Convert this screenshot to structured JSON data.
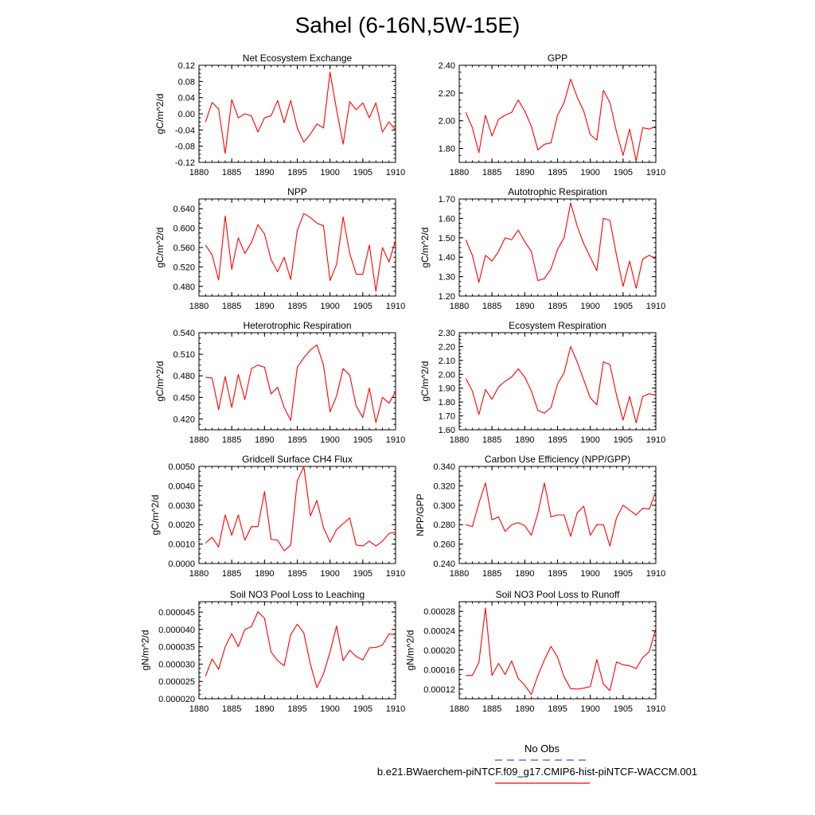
{
  "title": "Sahel (6-16N,5W-15E)",
  "colors": {
    "model": "#ff0000",
    "obs": "#4b4bd9"
  },
  "legend": {
    "entries": [
      {
        "label": "No Obs",
        "style": "dashed",
        "color": "#4b4bd9"
      },
      {
        "label": "b.e21.BWaerchem-piNTCF.f09_g17.CMIP6-hist-piNTCF-WACCM.001",
        "style": "solid",
        "color": "#ff0000"
      }
    ]
  },
  "chart_data": [
    {
      "type": "line",
      "title": "Net Ecosystem Exchange",
      "ylabel": "gC/m^2/d",
      "xlim": [
        1880,
        1910
      ],
      "xticks": [
        1880,
        1885,
        1890,
        1895,
        1900,
        1905,
        1910
      ],
      "ylim": [
        -0.12,
        0.12
      ],
      "yticks": [
        -0.12,
        -0.08,
        -0.04,
        0.0,
        0.04,
        0.08,
        0.12
      ],
      "yfmt": 2,
      "x": [
        1881,
        1882,
        1883,
        1884,
        1885,
        1886,
        1887,
        1888,
        1889,
        1890,
        1891,
        1892,
        1893,
        1894,
        1895,
        1896,
        1897,
        1898,
        1899,
        1900,
        1901,
        1902,
        1903,
        1904,
        1905,
        1906,
        1907,
        1908,
        1909,
        1910
      ],
      "series": [
        {
          "values": [
            -0.02,
            0.028,
            0.012,
            -0.098,
            0.035,
            -0.01,
            0.0,
            -0.005,
            -0.045,
            -0.01,
            -0.005,
            0.033,
            -0.022,
            0.033,
            -0.035,
            -0.07,
            -0.05,
            -0.025,
            -0.035,
            0.103,
            0.01,
            -0.075,
            0.03,
            0.01,
            0.027,
            -0.01,
            0.027,
            -0.045,
            -0.02,
            -0.04
          ]
        }
      ]
    },
    {
      "type": "line",
      "title": "GPP",
      "ylabel": "",
      "xlim": [
        1880,
        1910
      ],
      "xticks": [
        1880,
        1885,
        1890,
        1895,
        1900,
        1905,
        1910
      ],
      "ylim": [
        1.7,
        2.4
      ],
      "yticks": [
        1.8,
        2.0,
        2.2,
        2.4
      ],
      "yfmt": 2,
      "x": [
        1881,
        1882,
        1883,
        1884,
        1885,
        1886,
        1887,
        1888,
        1889,
        1890,
        1891,
        1892,
        1893,
        1894,
        1895,
        1896,
        1897,
        1898,
        1899,
        1900,
        1901,
        1902,
        1903,
        1904,
        1905,
        1906,
        1907,
        1908,
        1909,
        1910
      ],
      "series": [
        {
          "values": [
            2.06,
            1.95,
            1.77,
            2.04,
            1.89,
            2.01,
            2.04,
            2.06,
            2.15,
            2.07,
            1.96,
            1.79,
            1.83,
            1.84,
            2.04,
            2.13,
            2.3,
            2.17,
            2.07,
            1.9,
            1.86,
            2.22,
            2.13,
            1.92,
            1.75,
            1.94,
            1.71,
            1.95,
            1.94,
            1.96
          ]
        }
      ]
    },
    {
      "type": "line",
      "title": "NPP",
      "ylabel": "gC/m^2/d",
      "xlim": [
        1880,
        1910
      ],
      "xticks": [
        1880,
        1885,
        1890,
        1895,
        1900,
        1905,
        1910
      ],
      "ylim": [
        0.46,
        0.66
      ],
      "yticks": [
        0.48,
        0.52,
        0.56,
        0.6,
        0.64
      ],
      "yfmt": 3,
      "x": [
        1881,
        1882,
        1883,
        1884,
        1885,
        1886,
        1887,
        1888,
        1889,
        1890,
        1891,
        1892,
        1893,
        1894,
        1895,
        1896,
        1897,
        1898,
        1899,
        1900,
        1901,
        1902,
        1903,
        1904,
        1905,
        1906,
        1907,
        1908,
        1909,
        1910
      ],
      "series": [
        {
          "values": [
            0.565,
            0.545,
            0.493,
            0.625,
            0.515,
            0.58,
            0.548,
            0.57,
            0.607,
            0.588,
            0.535,
            0.51,
            0.54,
            0.494,
            0.595,
            0.63,
            0.622,
            0.61,
            0.605,
            0.492,
            0.525,
            0.623,
            0.548,
            0.505,
            0.505,
            0.565,
            0.47,
            0.56,
            0.53,
            0.575
          ]
        }
      ]
    },
    {
      "type": "line",
      "title": "Autotrophic Respiration",
      "ylabel": "gC/m^2/d",
      "xlim": [
        1880,
        1910
      ],
      "xticks": [
        1880,
        1885,
        1890,
        1895,
        1900,
        1905,
        1910
      ],
      "ylim": [
        1.2,
        1.7
      ],
      "yticks": [
        1.2,
        1.3,
        1.4,
        1.5,
        1.6,
        1.7
      ],
      "yfmt": 2,
      "x": [
        1881,
        1882,
        1883,
        1884,
        1885,
        1886,
        1887,
        1888,
        1889,
        1890,
        1891,
        1892,
        1893,
        1894,
        1895,
        1896,
        1897,
        1898,
        1899,
        1900,
        1901,
        1902,
        1903,
        1904,
        1905,
        1906,
        1907,
        1908,
        1909,
        1910
      ],
      "series": [
        {
          "values": [
            1.49,
            1.41,
            1.27,
            1.41,
            1.38,
            1.43,
            1.5,
            1.49,
            1.54,
            1.48,
            1.43,
            1.28,
            1.29,
            1.34,
            1.44,
            1.5,
            1.68,
            1.56,
            1.47,
            1.4,
            1.33,
            1.6,
            1.59,
            1.41,
            1.25,
            1.38,
            1.24,
            1.39,
            1.41,
            1.39
          ]
        }
      ]
    },
    {
      "type": "line",
      "title": "Heterotrophic Respiration",
      "ylabel": "gC/m^2/d",
      "xlim": [
        1880,
        1910
      ],
      "xticks": [
        1880,
        1885,
        1890,
        1895,
        1900,
        1905,
        1910
      ],
      "ylim": [
        0.405,
        0.54
      ],
      "yticks": [
        0.42,
        0.45,
        0.48,
        0.51,
        0.54
      ],
      "yfmt": 3,
      "x": [
        1881,
        1882,
        1883,
        1884,
        1885,
        1886,
        1887,
        1888,
        1889,
        1890,
        1891,
        1892,
        1893,
        1894,
        1895,
        1896,
        1897,
        1898,
        1899,
        1900,
        1901,
        1902,
        1903,
        1904,
        1905,
        1906,
        1907,
        1908,
        1909,
        1910
      ],
      "series": [
        {
          "values": [
            0.478,
            0.477,
            0.433,
            0.479,
            0.436,
            0.482,
            0.447,
            0.49,
            0.495,
            0.492,
            0.455,
            0.464,
            0.436,
            0.418,
            0.492,
            0.505,
            0.516,
            0.523,
            0.495,
            0.43,
            0.452,
            0.49,
            0.481,
            0.438,
            0.422,
            0.463,
            0.415,
            0.45,
            0.442,
            0.458
          ]
        }
      ]
    },
    {
      "type": "line",
      "title": "Ecosystem Respiration",
      "ylabel": "gC/m^2/d",
      "xlim": [
        1880,
        1910
      ],
      "xticks": [
        1880,
        1885,
        1890,
        1895,
        1900,
        1905,
        1910
      ],
      "ylim": [
        1.6,
        2.3
      ],
      "yticks": [
        1.6,
        1.7,
        1.8,
        1.9,
        2.0,
        2.1,
        2.2,
        2.3
      ],
      "yfmt": 2,
      "x": [
        1881,
        1882,
        1883,
        1884,
        1885,
        1886,
        1887,
        1888,
        1889,
        1890,
        1891,
        1892,
        1893,
        1894,
        1895,
        1896,
        1897,
        1898,
        1899,
        1900,
        1901,
        1902,
        1903,
        1904,
        1905,
        1906,
        1907,
        1908,
        1909,
        1910
      ],
      "series": [
        {
          "values": [
            1.97,
            1.88,
            1.71,
            1.89,
            1.82,
            1.91,
            1.95,
            1.98,
            2.04,
            1.98,
            1.88,
            1.74,
            1.72,
            1.76,
            1.93,
            2.01,
            2.2,
            2.09,
            1.96,
            1.83,
            1.78,
            2.09,
            2.07,
            1.85,
            1.67,
            1.84,
            1.65,
            1.84,
            1.86,
            1.85
          ]
        }
      ]
    },
    {
      "type": "line",
      "title": "Gridcell Surface CH4 Flux",
      "ylabel": "gC/m^2/d",
      "xlim": [
        1880,
        1910
      ],
      "xticks": [
        1880,
        1885,
        1890,
        1895,
        1900,
        1905,
        1910
      ],
      "ylim": [
        0.0,
        0.005
      ],
      "yticks": [
        0.0,
        0.001,
        0.002,
        0.003,
        0.004,
        0.005
      ],
      "yfmt": 4,
      "x": [
        1881,
        1882,
        1883,
        1884,
        1885,
        1886,
        1887,
        1888,
        1889,
        1890,
        1891,
        1892,
        1893,
        1894,
        1895,
        1896,
        1897,
        1898,
        1899,
        1900,
        1901,
        1902,
        1903,
        1904,
        1905,
        1906,
        1907,
        1908,
        1909,
        1910
      ],
      "series": [
        {
          "values": [
            0.00105,
            0.00135,
            0.00085,
            0.0025,
            0.00145,
            0.0025,
            0.0012,
            0.0019,
            0.0019,
            0.0037,
            0.00125,
            0.0012,
            0.00065,
            0.00095,
            0.00425,
            0.005,
            0.00245,
            0.00325,
            0.00185,
            0.0011,
            0.00175,
            0.00205,
            0.00235,
            0.00095,
            0.0009,
            0.00115,
            0.0009,
            0.00115,
            0.00155,
            0.0016
          ]
        }
      ]
    },
    {
      "type": "line",
      "title": "Carbon Use Efficiency (NPP/GPP)",
      "ylabel": "NPP/GPP",
      "xlim": [
        1880,
        1910
      ],
      "xticks": [
        1880,
        1885,
        1890,
        1895,
        1900,
        1905,
        1910
      ],
      "ylim": [
        0.24,
        0.34
      ],
      "yticks": [
        0.24,
        0.26,
        0.28,
        0.3,
        0.32,
        0.34
      ],
      "yfmt": 3,
      "x": [
        1881,
        1882,
        1883,
        1884,
        1885,
        1886,
        1887,
        1888,
        1889,
        1890,
        1891,
        1892,
        1893,
        1894,
        1895,
        1896,
        1897,
        1898,
        1899,
        1900,
        1901,
        1902,
        1903,
        1904,
        1905,
        1906,
        1907,
        1908,
        1909,
        1910
      ],
      "series": [
        {
          "values": [
            0.28,
            0.278,
            0.302,
            0.323,
            0.285,
            0.288,
            0.273,
            0.28,
            0.282,
            0.279,
            0.269,
            0.292,
            0.323,
            0.288,
            0.29,
            0.29,
            0.268,
            0.292,
            0.299,
            0.269,
            0.28,
            0.28,
            0.258,
            0.287,
            0.3,
            0.295,
            0.29,
            0.297,
            0.296,
            0.314
          ]
        }
      ]
    },
    {
      "type": "line",
      "title": "Soil NO3 Pool Loss to Leaching",
      "ylabel": "gN/m^2/d",
      "xlim": [
        1880,
        1910
      ],
      "xticks": [
        1880,
        1885,
        1890,
        1895,
        1900,
        1905,
        1910
      ],
      "ylim": [
        2e-05,
        4.8e-05
      ],
      "yticks": [
        2e-05,
        2.5e-05,
        3e-05,
        3.5e-05,
        4e-05,
        4.5e-05
      ],
      "yfmt": 6,
      "x": [
        1881,
        1882,
        1883,
        1884,
        1885,
        1886,
        1887,
        1888,
        1889,
        1890,
        1891,
        1892,
        1893,
        1894,
        1895,
        1896,
        1897,
        1898,
        1899,
        1900,
        1901,
        1902,
        1903,
        1904,
        1905,
        1906,
        1907,
        1908,
        1909,
        1910
      ],
      "series": [
        {
          "values": [
            2.65e-05,
            3.15e-05,
            2.85e-05,
            3.5e-05,
            3.88e-05,
            3.5e-05,
            4e-05,
            4.08e-05,
            4.51e-05,
            4.32e-05,
            3.35e-05,
            3.1e-05,
            2.95e-05,
            3.85e-05,
            4.15e-05,
            3.9e-05,
            3e-05,
            2.32e-05,
            2.72e-05,
            3.35e-05,
            4.1e-05,
            3.1e-05,
            3.4e-05,
            3.22e-05,
            3.12e-05,
            3.47e-05,
            3.48e-05,
            3.55e-05,
            3.87e-05,
            3.85e-05
          ]
        }
      ]
    },
    {
      "type": "line",
      "title": "Soil NO3 Pool Loss to Runoff",
      "ylabel": "gN/m^2/d",
      "xlim": [
        1880,
        1910
      ],
      "xticks": [
        1880,
        1885,
        1890,
        1895,
        1900,
        1905,
        1910
      ],
      "ylim": [
        0.0001,
        0.0003
      ],
      "yticks": [
        0.00012,
        0.00016,
        0.0002,
        0.00024,
        0.00028
      ],
      "yfmt": 5,
      "x": [
        1881,
        1882,
        1883,
        1884,
        1885,
        1886,
        1887,
        1888,
        1889,
        1890,
        1891,
        1892,
        1893,
        1894,
        1895,
        1896,
        1897,
        1898,
        1899,
        1900,
        1901,
        1902,
        1903,
        1904,
        1905,
        1906,
        1907,
        1908,
        1909,
        1910
      ],
      "series": [
        {
          "values": [
            0.000148,
            0.000148,
            0.000175,
            0.000287,
            0.000148,
            0.000173,
            0.00015,
            0.000178,
            0.000142,
            0.000128,
            0.000109,
            0.000148,
            0.00018,
            0.000208,
            0.000186,
            0.000145,
            0.000121,
            0.00012,
            0.000122,
            0.000125,
            0.000181,
            0.00013,
            0.000117,
            0.000176,
            0.00017,
            0.000168,
            0.000162,
            0.000185,
            0.000197,
            0.000245
          ]
        }
      ]
    }
  ]
}
